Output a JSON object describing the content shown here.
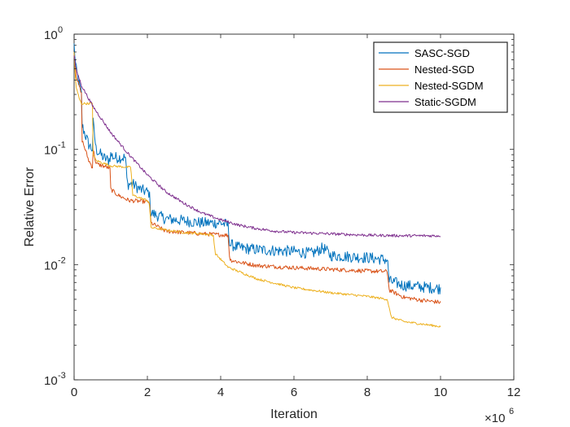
{
  "chart_data": {
    "type": "line",
    "title": "",
    "xlabel": "Iteration",
    "ylabel": "Relative Error",
    "x_exponent_base": "×10",
    "x_exponent": "6",
    "xlim": [
      0,
      12
    ],
    "ylim": [
      0.001,
      1
    ],
    "yscale": "log",
    "x_ticks": [
      {
        "value": 0,
        "label": "0"
      },
      {
        "value": 2,
        "label": "2"
      },
      {
        "value": 4,
        "label": "4"
      },
      {
        "value": 6,
        "label": "6"
      },
      {
        "value": 8,
        "label": "8"
      },
      {
        "value": 10,
        "label": "10"
      },
      {
        "value": 12,
        "label": "12"
      }
    ],
    "y_ticks": [
      {
        "value": 1,
        "base": "10",
        "exp": "0"
      },
      {
        "value": 0.1,
        "base": "10",
        "exp": "-1"
      },
      {
        "value": 0.01,
        "base": "10",
        "exp": "-2"
      },
      {
        "value": 0.001,
        "base": "10",
        "exp": "-3"
      }
    ],
    "legend_position": "top-right",
    "series": [
      {
        "name": "SASC-SGD",
        "color": "#0072BD",
        "noise": 0.05,
        "points": [
          [
            0,
            0.8
          ],
          [
            0.05,
            0.5
          ],
          [
            0.2,
            0.3
          ],
          [
            0.22,
            0.16
          ],
          [
            0.4,
            0.11
          ],
          [
            0.5,
            0.1
          ],
          [
            0.52,
            0.17
          ],
          [
            0.6,
            0.1
          ],
          [
            0.8,
            0.085
          ],
          [
            0.95,
            0.08
          ],
          [
            1.0,
            0.09
          ],
          [
            1.1,
            0.085
          ],
          [
            1.4,
            0.085
          ],
          [
            1.45,
            0.05
          ],
          [
            1.6,
            0.05
          ],
          [
            1.8,
            0.045
          ],
          [
            2.05,
            0.042
          ],
          [
            2.1,
            0.028
          ],
          [
            2.5,
            0.025
          ],
          [
            3,
            0.024
          ],
          [
            3.5,
            0.023
          ],
          [
            4.0,
            0.023
          ],
          [
            4.2,
            0.022
          ],
          [
            4.25,
            0.015
          ],
          [
            4.5,
            0.014
          ],
          [
            5,
            0.0135
          ],
          [
            6,
            0.013
          ],
          [
            6.5,
            0.0125
          ],
          [
            6.8,
            0.014
          ],
          [
            7,
            0.012
          ],
          [
            8,
            0.0115
          ],
          [
            8.55,
            0.011
          ],
          [
            8.6,
            0.0072
          ],
          [
            9,
            0.0066
          ],
          [
            9.5,
            0.0064
          ],
          [
            10,
            0.0062
          ]
        ]
      },
      {
        "name": "Nested-SGD",
        "color": "#D95319",
        "noise": 0.018,
        "points": [
          [
            0,
            0.7
          ],
          [
            0.05,
            0.45
          ],
          [
            0.2,
            0.3
          ],
          [
            0.22,
            0.12
          ],
          [
            0.4,
            0.08
          ],
          [
            0.5,
            0.07
          ],
          [
            0.52,
            0.1
          ],
          [
            0.6,
            0.075
          ],
          [
            0.9,
            0.07
          ],
          [
            0.98,
            0.068
          ],
          [
            1.0,
            0.045
          ],
          [
            1.2,
            0.04
          ],
          [
            1.5,
            0.036
          ],
          [
            2.05,
            0.035
          ],
          [
            2.1,
            0.023
          ],
          [
            2.5,
            0.0195
          ],
          [
            3,
            0.019
          ],
          [
            3.5,
            0.0185
          ],
          [
            4.2,
            0.018
          ],
          [
            4.25,
            0.011
          ],
          [
            4.5,
            0.0105
          ],
          [
            5,
            0.0098
          ],
          [
            6,
            0.0094
          ],
          [
            7,
            0.0091
          ],
          [
            8,
            0.0088
          ],
          [
            8.55,
            0.0087
          ],
          [
            8.6,
            0.006
          ],
          [
            9,
            0.0052
          ],
          [
            9.5,
            0.0049
          ],
          [
            10,
            0.0047
          ]
        ]
      },
      {
        "name": "Nested-SGDM",
        "color": "#EDB120",
        "noise": 0.01,
        "points": [
          [
            0,
            0.7
          ],
          [
            0.05,
            0.35
          ],
          [
            0.15,
            0.27
          ],
          [
            0.2,
            0.25
          ],
          [
            0.5,
            0.25
          ],
          [
            0.52,
            0.09
          ],
          [
            0.6,
            0.08
          ],
          [
            1.0,
            0.072
          ],
          [
            1.5,
            0.07
          ],
          [
            1.55,
            0.07
          ],
          [
            1.6,
            0.04
          ],
          [
            2,
            0.036
          ],
          [
            2.05,
            0.035
          ],
          [
            2.1,
            0.021
          ],
          [
            2.5,
            0.02
          ],
          [
            3,
            0.019
          ],
          [
            3.5,
            0.0185
          ],
          [
            3.8,
            0.018
          ],
          [
            3.85,
            0.0125
          ],
          [
            4.2,
            0.0095
          ],
          [
            5,
            0.0075
          ],
          [
            6,
            0.0063
          ],
          [
            7,
            0.0057
          ],
          [
            8,
            0.0053
          ],
          [
            8.55,
            0.005
          ],
          [
            8.65,
            0.0035
          ],
          [
            9,
            0.0032
          ],
          [
            10,
            0.0029
          ]
        ]
      },
      {
        "name": "Static-SGDM",
        "color": "#7E2F8E",
        "noise": 0.012,
        "points": [
          [
            0,
            0.65
          ],
          [
            0.05,
            0.5
          ],
          [
            0.2,
            0.36
          ],
          [
            0.5,
            0.24
          ],
          [
            1.0,
            0.14
          ],
          [
            1.5,
            0.09
          ],
          [
            2,
            0.06
          ],
          [
            2.5,
            0.043
          ],
          [
            3,
            0.034
          ],
          [
            3.5,
            0.028
          ],
          [
            4,
            0.0245
          ],
          [
            4.5,
            0.022
          ],
          [
            5,
            0.0205
          ],
          [
            5.5,
            0.0195
          ],
          [
            6,
            0.019
          ],
          [
            7,
            0.0185
          ],
          [
            8,
            0.018
          ],
          [
            9,
            0.0178
          ],
          [
            10,
            0.0178
          ]
        ]
      }
    ]
  }
}
